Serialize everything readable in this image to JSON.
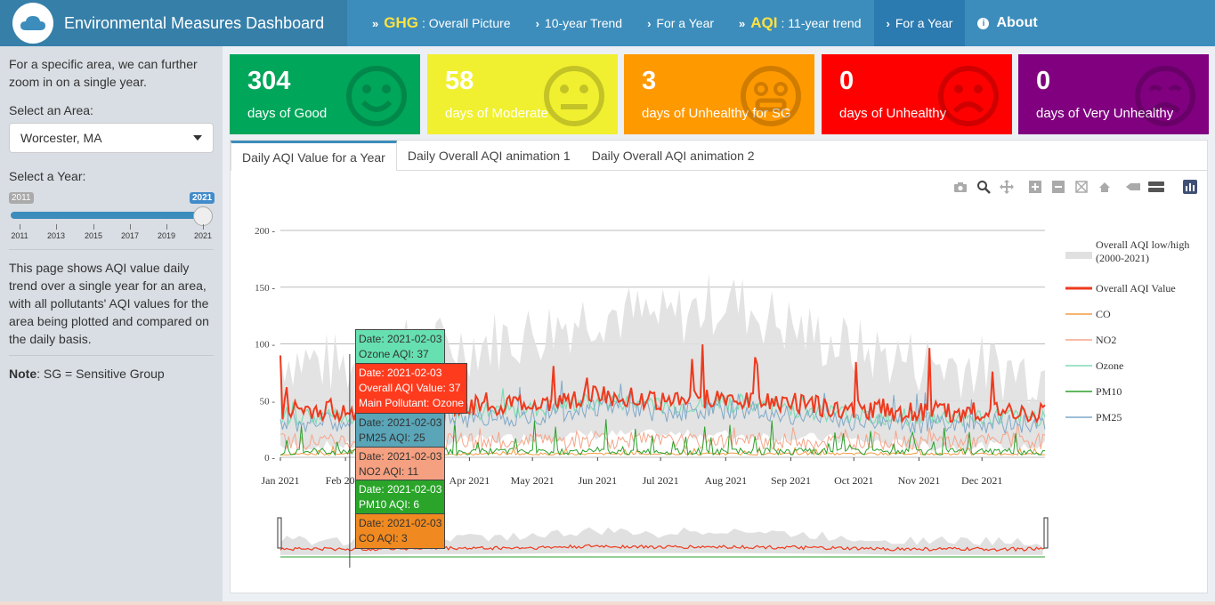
{
  "header": {
    "title": "Environmental Measures Dashboard",
    "nav": [
      {
        "big": "GHG",
        "label": ": Overall Picture"
      },
      {
        "big": "",
        "label": "10-year Trend"
      },
      {
        "big": "",
        "label": "For a Year"
      },
      {
        "big": "AQI",
        "label": ": 11-year trend"
      },
      {
        "big": "",
        "label": "For a Year",
        "active": true
      },
      {
        "label": "About"
      }
    ]
  },
  "sidebar": {
    "intro": "For a specific area, we can further zoom in on a single year.",
    "area_label": "Select an Area:",
    "area_value": "Worcester, MA",
    "year_label": "Select a Year:",
    "year_min": "2011",
    "year_value": "2021",
    "year_ticks": [
      "2011",
      "2013",
      "2015",
      "2017",
      "2019",
      "2021"
    ],
    "description": "This page shows AQI value daily trend over a single year for an area, with all pollutants' AQI values for the area being plotted and compared on the daily basis.",
    "note_bold": "Note",
    "note_text": ": SG = Sensitive Group"
  },
  "value_boxes": [
    {
      "value": "304",
      "label": "days of Good",
      "color": "#00a65a",
      "icon": "smile-icon"
    },
    {
      "value": "58",
      "label": "days of Moderate",
      "color": "#f0f030",
      "icon": "neutral-face-icon"
    },
    {
      "value": "3",
      "label": "days of Unhealthy for SG",
      "color": "#ff9900",
      "icon": "grin-face-icon"
    },
    {
      "value": "0",
      "label": "days of Unhealthy",
      "color": "#ff0000",
      "icon": "frown-icon"
    },
    {
      "value": "0",
      "label": "days of Very Unhealthy",
      "color": "#800080",
      "icon": "sad-face-icon"
    }
  ],
  "tabs": [
    "Daily AQI Value for a Year",
    "Daily Overall AQI animation 1",
    "Daily Overall AQI animation 2"
  ],
  "modebar_icons": [
    "camera-icon",
    "zoom-icon",
    "pan-icon",
    "zoom-in-icon",
    "zoom-out-icon",
    "autoscale-icon",
    "home-icon",
    "spike-lines-icon",
    "compare-hover-icon",
    "plotly-logo-icon"
  ],
  "tooltips": [
    {
      "lines": [
        "Date: 2021-02-03",
        "Ozone AQI: 37"
      ],
      "color": "#66e0b0"
    },
    {
      "lines": [
        "Date: 2021-02-03",
        "Overall AQI Value: 37",
        "Main Pollutant: Ozone"
      ],
      "color": "#ff3b1e"
    },
    {
      "lines": [
        "Date: 2021-02-03",
        "PM25 AQI: 25"
      ],
      "color": "#5aa5b8"
    },
    {
      "lines": [
        "Date: 2021-02-03",
        "NO2 AQI: 11"
      ],
      "color": "#f5a080"
    },
    {
      "lines": [
        "Date: 2021-02-03",
        "PM10 AQI: 6"
      ],
      "color": "#2aa52a"
    },
    {
      "lines": [
        "Date: 2021-02-03",
        "CO AQI: 3"
      ],
      "color": "#f08a20"
    }
  ],
  "chart_data": {
    "type": "line",
    "x_range": [
      "2021-01-01",
      "2021-12-31"
    ],
    "x_ticks": [
      "Jan 2021",
      "Feb 2021",
      "Mar 2021",
      "Apr 2021",
      "May 2021",
      "Jun 2021",
      "Jul 2021",
      "Aug 2021",
      "Sep 2021",
      "Oct 2021",
      "Nov 2021",
      "Dec 2021"
    ],
    "y_ticks": [
      0,
      50,
      100,
      150,
      200
    ],
    "ylim": [
      0,
      200
    ],
    "legend": [
      {
        "name": "Overall AQI low/high (2000-2021)",
        "color": "#e0e0e0"
      },
      {
        "name": "Overall AQI Value",
        "color": "#ee3a1e"
      },
      {
        "name": "CO",
        "color": "#f29b45"
      },
      {
        "name": "NO2",
        "color": "#f5a58a"
      },
      {
        "name": "Ozone",
        "color": "#7fdcb4"
      },
      {
        "name": "PM10",
        "color": "#2ca02c"
      },
      {
        "name": "PM25",
        "color": "#7fa9c9"
      }
    ],
    "legend_position": "right",
    "highlighted_point": {
      "date": "2021-02-03",
      "overall": 37,
      "ozone": 37,
      "pm25": 25,
      "no2": 11,
      "pm10": 6,
      "co": 3
    },
    "series_monthly_approx": {
      "Overall AQI Value": [
        42,
        40,
        44,
        45,
        47,
        55,
        50,
        52,
        48,
        42,
        40,
        40
      ],
      "band_high": [
        90,
        80,
        95,
        100,
        110,
        130,
        120,
        140,
        115,
        95,
        85,
        80
      ],
      "band_low": [
        10,
        10,
        15,
        15,
        18,
        20,
        20,
        20,
        18,
        15,
        10,
        10
      ]
    }
  }
}
